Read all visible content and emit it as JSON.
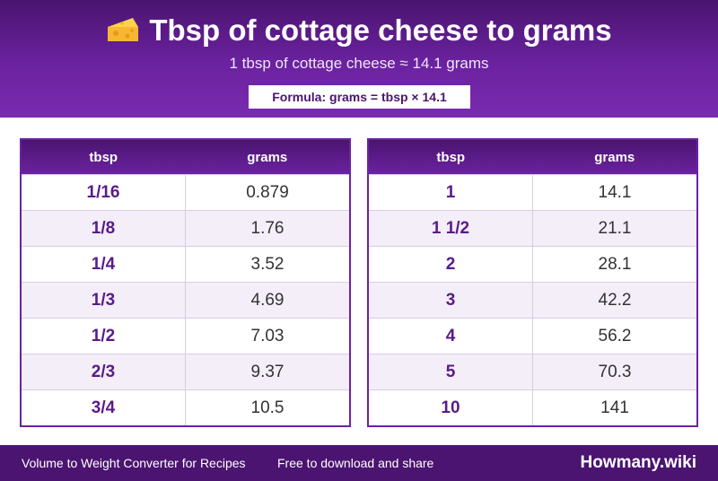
{
  "header": {
    "emoji_icon": "cheese-icon",
    "title": "Tbsp of cottage cheese to grams",
    "subtitle": "1 tbsp of cottage cheese ≈ 14.1 grams",
    "formula": "Formula: grams = tbsp × 14.1"
  },
  "tables": {
    "headers": {
      "tbsp": "tbsp",
      "grams": "grams"
    },
    "left": [
      {
        "tbsp": "1/16",
        "grams": "0.879"
      },
      {
        "tbsp": "1/8",
        "grams": "1.76"
      },
      {
        "tbsp": "1/4",
        "grams": "3.52"
      },
      {
        "tbsp": "1/3",
        "grams": "4.69"
      },
      {
        "tbsp": "1/2",
        "grams": "7.03"
      },
      {
        "tbsp": "2/3",
        "grams": "9.37"
      },
      {
        "tbsp": "3/4",
        "grams": "10.5"
      }
    ],
    "right": [
      {
        "tbsp": "1",
        "grams": "14.1"
      },
      {
        "tbsp": "1 1/2",
        "grams": "21.1"
      },
      {
        "tbsp": "2",
        "grams": "28.1"
      },
      {
        "tbsp": "3",
        "grams": "42.2"
      },
      {
        "tbsp": "4",
        "grams": "56.2"
      },
      {
        "tbsp": "5",
        "grams": "70.3"
      },
      {
        "tbsp": "10",
        "grams": "141"
      }
    ]
  },
  "footer": {
    "left_text": "Volume to Weight Converter for Recipes",
    "middle_text": "Free to download and share",
    "brand": "Howmany.wiki"
  },
  "colors": {
    "primary": "#4a1470",
    "accent": "#6b22a0",
    "row_alt": "#f3eef8"
  }
}
